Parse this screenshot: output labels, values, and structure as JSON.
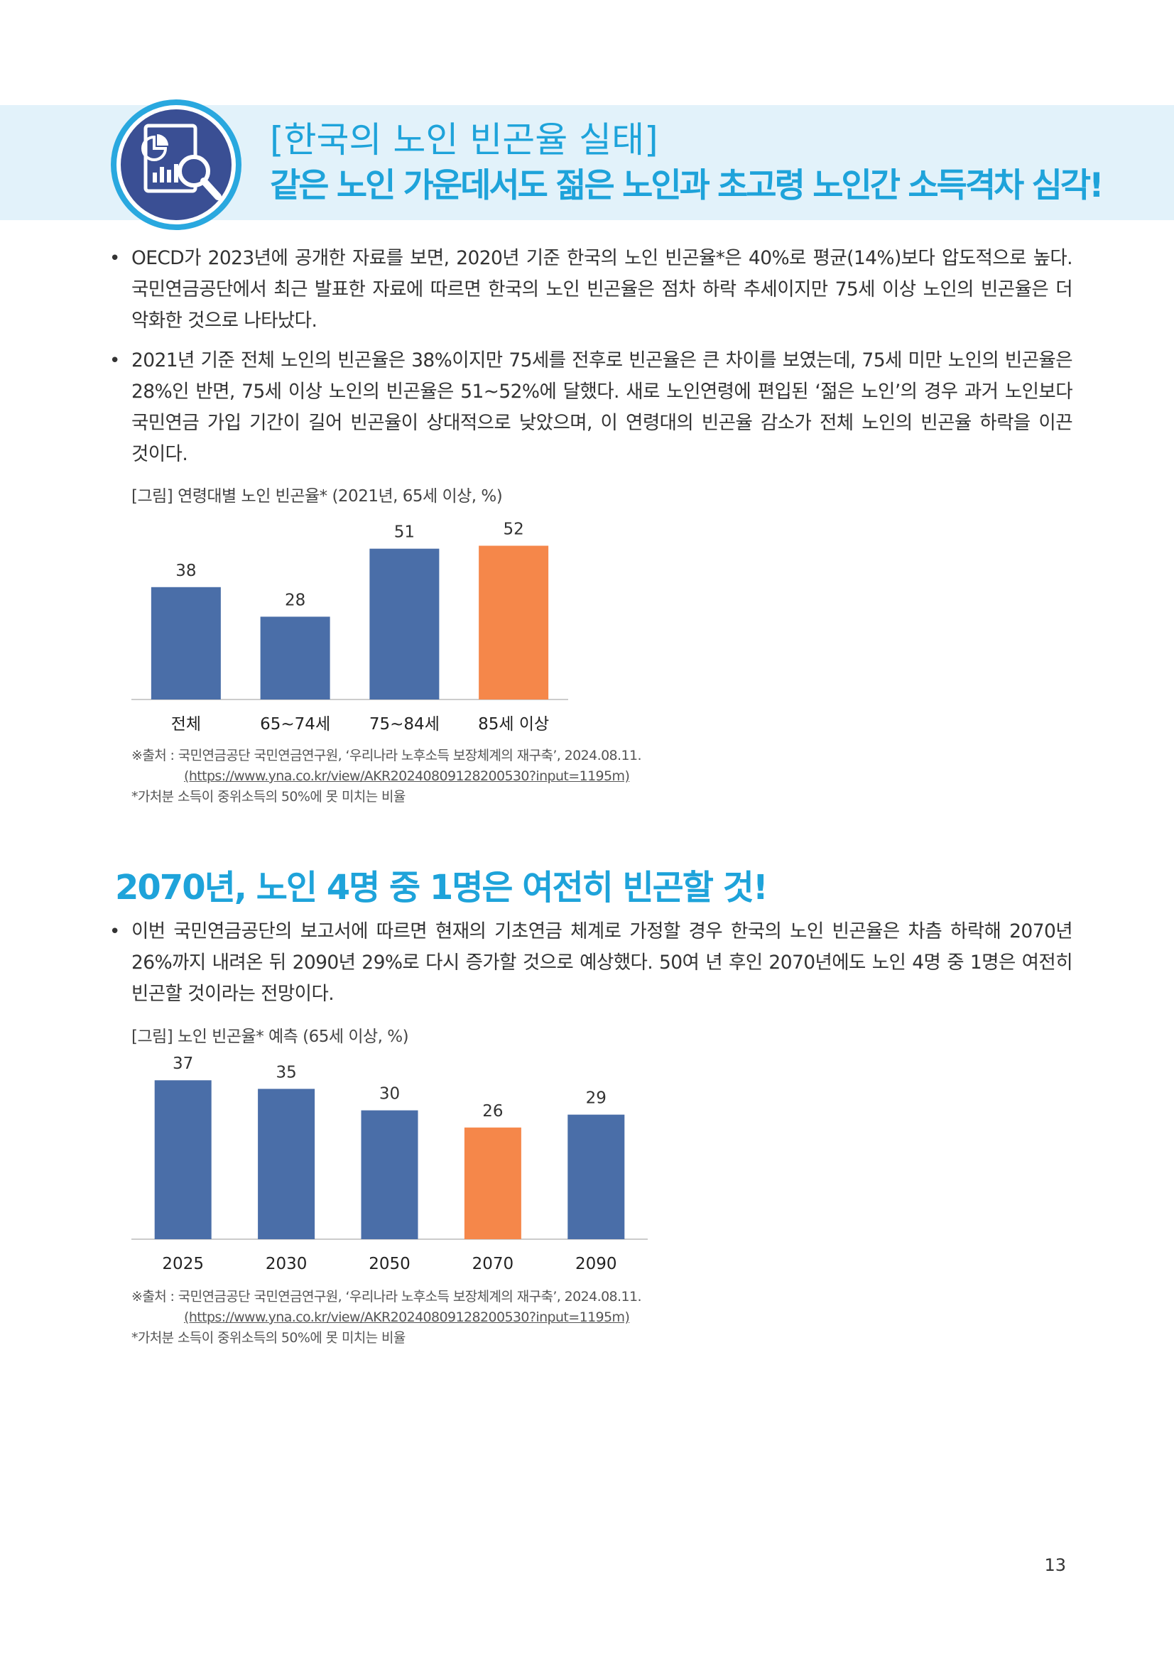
{
  "header": {
    "title": "[한국의 노인 빈곤율 실태]",
    "subtitle": "같은 노인 가운데서도 젊은 노인과 초고령 노인간 소득격차 심각!",
    "icon": "report-magnifier-icon"
  },
  "section1": {
    "bullets": [
      "OECD가 2023년에 공개한 자료를 보면, 2020년 기준 한국의 노인 빈곤율*은 40%로 평균(14%)보다 압도적으로 높다. 국민연금공단에서 최근 발표한 자료에 따르면 한국의 노인 빈곤율은 점차 하락 추세이지만 75세 이상 노인의 빈곤율은 더 악화한 것으로 나타났다.",
      "2021년 기준 전체 노인의 빈곤율은 38%이지만 75세를 전후로 빈곤율은 큰 차이를 보였는데, 75세 미만 노인의 빈곤율은 28%인 반면, 75세 이상 노인의 빈곤율은 51~52%에 달했다. 새로 노인연령에 편입된 ‘젊은 노인’의 경우 과거 노인보다 국민연금 가입 기간이 길어 빈곤율이 상대적으로 낮았으며, 이 연령대의 빈곤율 감소가 전체 노인의 빈곤율 하락을 이끈 것이다."
    ],
    "figure_caption": "[그림] 연령대별 노인 빈곤율* (2021년, 65세 이상, %)",
    "source": "※출처 : 국민연금공단 국민연금연구원, ‘우리나라 노후소득 보장체계의 재구축’, 2024.08.11.",
    "source_url": "(https://www.yna.co.kr/view/AKR20240809128200530?input=1195m)",
    "footnote": "*가처분 소득이 중위소득의 50%에 못 미치는 비율"
  },
  "section2": {
    "title": "2070년, 노인 4명 중 1명은 여전히 빈곤할 것!",
    "bullets": [
      "이번 국민연금공단의 보고서에 따르면 현재의 기초연금 체계로 가정할 경우 한국의 노인 빈곤율은 차츰 하락해 2070년 26%까지 내려온 뒤 2090년 29%로 다시 증가할 것으로 예상했다. 50여 년 후인 2070년에도 노인 4명 중 1명은 여전히 빈곤할 것이라는 전망이다."
    ],
    "figure_caption": "[그림] 노인 빈곤율* 예측 (65세 이상, %)",
    "source": "※출처 : 국민연금공단 국민연금연구원, ‘우리나라 노후소득 보장체계의 재구축’, 2024.08.11.",
    "source_url": "(https://www.yna.co.kr/view/AKR20240809128200530?input=1195m)",
    "footnote": "*가처분 소득이 중위소득의 50%에 못 미치는 비율"
  },
  "chart_data": [
    {
      "type": "bar",
      "title": "[그림] 연령대별 노인 빈곤율* (2021년, 65세 이상, %)",
      "categories": [
        "전체",
        "65~74세",
        "75~84세",
        "85세 이상"
      ],
      "values": [
        38,
        28,
        51,
        52
      ],
      "highlight_index": 3,
      "ylim": [
        0,
        55
      ],
      "grid": false,
      "legend": "none",
      "colors": {
        "bar": "#4a6ea8",
        "highlight": "#f5874a"
      }
    },
    {
      "type": "bar",
      "title": "[그림] 노인 빈곤율* 예측 (65세 이상, %)",
      "categories": [
        "2025",
        "2030",
        "2050",
        "2070",
        "2090"
      ],
      "values": [
        37,
        35,
        30,
        26,
        29
      ],
      "highlight_index": 3,
      "ylim": [
        0,
        42
      ],
      "grid": false,
      "legend": "none",
      "colors": {
        "bar": "#4a6ea8",
        "highlight": "#f5874a"
      }
    }
  ],
  "page_number": "13"
}
